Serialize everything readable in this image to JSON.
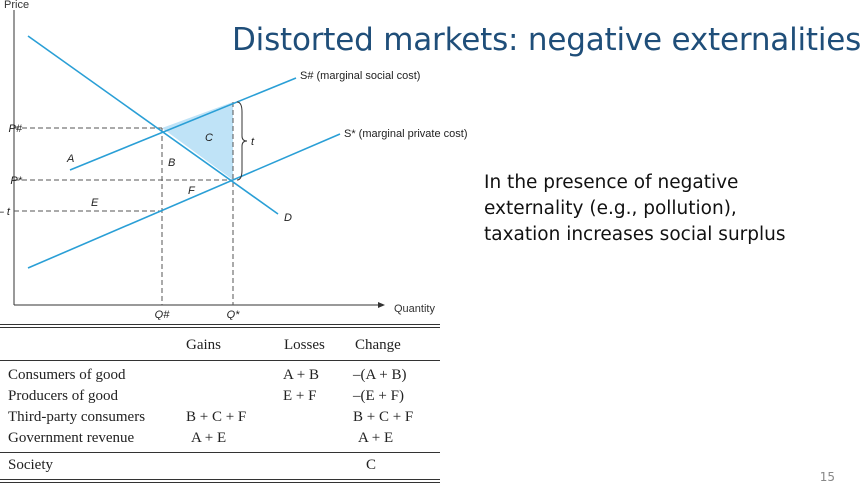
{
  "slide": {
    "title": "Distorted markets: negative externalities",
    "text_lines": [
      "In the presence of negative",
      "externality (e.g., pollution),",
      "taxation increases social surplus"
    ],
    "page_number": "15"
  },
  "colors": {
    "curve": "#2a9fd6",
    "shaded_area": "#bfe3f7",
    "title": "#1f4e79"
  },
  "diagram": {
    "y_axis_label": "Price",
    "x_axis_label": "Quantity",
    "curves": {
      "social_cost": "S# (marginal social cost)",
      "private_cost": "S* (marginal private cost)",
      "demand": "D"
    },
    "price_labels": {
      "p_hash": "P#",
      "p_star": "P*",
      "p_hash_minus_t": "P# – t"
    },
    "quantity_labels": {
      "q_hash": "Q#",
      "q_star": "Q*"
    },
    "tax_label": "t",
    "area_labels": {
      "A": "A",
      "B": "B",
      "C": "C",
      "E": "E",
      "F": "F"
    }
  },
  "table": {
    "headers": [
      "",
      "Gains",
      "Losses",
      "Change"
    ],
    "rows": [
      [
        "Consumers of good",
        "",
        "A + B",
        "–(A + B)"
      ],
      [
        "Producers of good",
        "",
        "E + F",
        "–(E + F)"
      ],
      [
        "Third-party consumers",
        "B + C + F",
        "",
        "B + C + F"
      ],
      [
        "Government revenue",
        "A + E",
        "",
        "A + E"
      ],
      [
        "Society",
        "",
        "",
        "C"
      ]
    ]
  }
}
